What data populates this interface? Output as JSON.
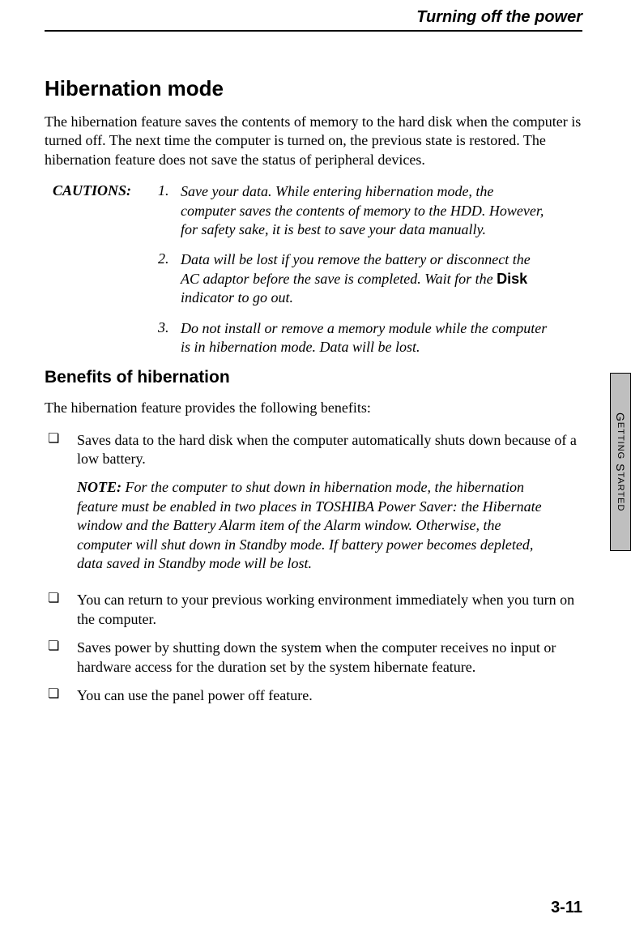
{
  "header": {
    "running_title": "Turning off the power"
  },
  "section": {
    "title": "Hibernation  mode",
    "intro": "The hibernation feature saves the contents of memory to the hard disk when the computer is turned off. The next time the computer is turned on, the previous state is restored. The hibernation feature does not save the status of peripheral devices."
  },
  "cautions": {
    "label": "CAUTIONS:",
    "items": [
      {
        "num": "1.",
        "pre": "Save your data. While entering hibernation mode, the computer saves the contents of memory to the HDD. However, for safety sake, it is best to save your data manually.",
        "bold": "",
        "post": ""
      },
      {
        "num": "2.",
        "pre": "Data will be lost if you remove the battery or disconnect the AC adaptor before the save is completed. Wait for the ",
        "bold": "Disk",
        "post": " indicator to go out."
      },
      {
        "num": "3.",
        "pre": "Do not install or remove a memory module while the computer is in hibernation mode. Data will be lost.",
        "bold": "",
        "post": ""
      }
    ]
  },
  "benefits": {
    "title": "Benefits of hibernation",
    "intro": "The  hibernation feature provides the following benefits:",
    "bullet1": "Saves data to the hard disk when the computer automatically shuts down because of a low battery.",
    "note_label": "NOTE:",
    "note_text": " For the computer to shut down in hibernation mode, the hibernation feature must be enabled in two places in TOSHIBA Power Saver: the Hibernate window and the Battery Alarm item of the Alarm window. Otherwise, the computer will shut down in Standby mode. If battery power becomes depleted, data saved in Standby mode will be lost.",
    "bullet2": "You can return to your previous working environment immediately when you turn on the computer.",
    "bullet3": "Saves power by shutting down the system when the computer receives no input or hardware access for the duration set by the system hibernate feature.",
    "bullet4": "You can use the panel power off feature."
  },
  "sidetab": {
    "g": "G",
    "etting": "ETTING",
    "s": " S",
    "tarted": "TARTED"
  },
  "footer": {
    "page": "3-11"
  }
}
